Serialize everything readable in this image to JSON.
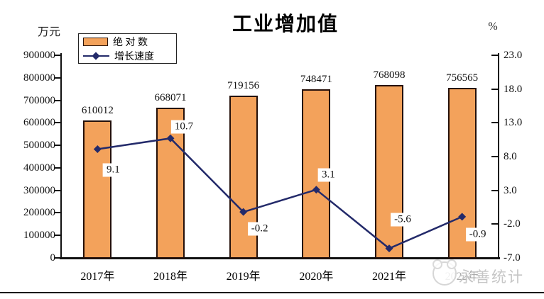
{
  "header": {
    "title": "工业增加值",
    "left_axis_unit": "万元",
    "right_axis_unit": "%"
  },
  "legend": {
    "items": [
      {
        "label": "绝 对 数",
        "marker": "bar-swatch",
        "color": "#F3A25B"
      },
      {
        "label": "增长速度",
        "marker": "line-diamond",
        "color": "#232a6a"
      }
    ]
  },
  "watermark": {
    "text": "永善统计",
    "logo": "mascot-logo"
  },
  "chart_data": {
    "type": "bar+line combo",
    "title": "工业增加值",
    "categories": [
      "2017年",
      "2018年",
      "2019年",
      "2020年",
      "2021年",
      "2022年"
    ],
    "series": [
      {
        "name": "绝 对 数",
        "type": "bar",
        "axis": "left",
        "unit": "万元",
        "values": [
          610012,
          668071,
          719156,
          748471,
          768098,
          756565
        ],
        "labels": [
          "610012",
          "668071",
          "719156",
          "748471",
          "768098",
          "756565"
        ]
      },
      {
        "name": "增长速度",
        "type": "line",
        "axis": "right",
        "unit": "%",
        "values": [
          9.1,
          10.7,
          -0.2,
          3.1,
          -5.6,
          -0.9
        ],
        "labels": [
          "9.1",
          "10.7",
          "-0.2",
          "3.1",
          "-5.6",
          "-0.9"
        ]
      }
    ],
    "left_axis": {
      "unit": "万元",
      "min": 0,
      "max": 900000,
      "ticks": [
        "0",
        "100000",
        "200000",
        "300000",
        "400000",
        "500000",
        "600000",
        "700000",
        "800000",
        "900000"
      ]
    },
    "right_axis": {
      "unit": "%",
      "min": -7.0,
      "max": 23.0,
      "ticks_top_down": [
        "23.0",
        "18.0",
        "13.0",
        "8.0",
        "3.0",
        "-2.0",
        "-7.0"
      ]
    },
    "grid": "off",
    "legend_position": "top-left",
    "colors": {
      "bar_fill": "#F3A25B",
      "bar_border": "#24100a",
      "line": "#232a6a",
      "background": "#ffffff"
    }
  }
}
